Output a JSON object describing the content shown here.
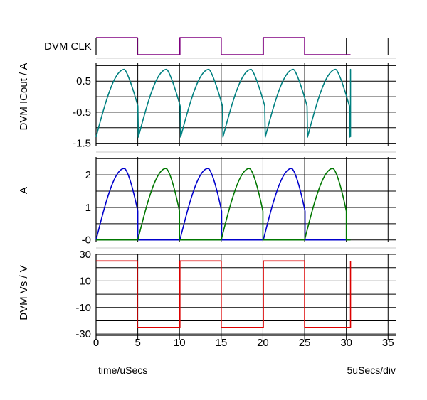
{
  "chart_data": [
    {
      "type": "line",
      "panel": "clock",
      "ylabel": "DVM CLK",
      "series": [
        {
          "color": "#800080",
          "x": [
            0,
            4.95,
            4.95,
            10.05,
            10.05,
            15.0,
            15.0,
            20.05,
            20.05,
            25.0,
            25.0,
            30.5
          ],
          "y": [
            1,
            1,
            0,
            0,
            1,
            1,
            0,
            0,
            1,
            1,
            0,
            0
          ]
        }
      ]
    },
    {
      "type": "line",
      "panel": "icout",
      "ylabel": "DVM ICout / A",
      "yticks": [
        0.5,
        -0.5,
        -1.5
      ],
      "ylim": [
        -1.6,
        1.1
      ],
      "series": [
        {
          "color": "#008080",
          "shape": "charge-discharge",
          "period": 5.07,
          "min": -1.3,
          "max": 0.88
        }
      ]
    },
    {
      "type": "line",
      "panel": "current",
      "ylabel": "A",
      "yticks": [
        2,
        1,
        0
      ],
      "yticklabels": [
        "2",
        "1",
        "-0"
      ],
      "ylim": [
        -0.05,
        2.55
      ],
      "series": [
        {
          "color": "#0000cc",
          "peak": 2.2,
          "pulse_starts": [
            0,
            10.05,
            20.05
          ]
        },
        {
          "color": "#007700",
          "peak": 2.2,
          "pulse_starts": [
            5.0,
            15.0,
            25.0
          ]
        }
      ]
    },
    {
      "type": "line",
      "panel": "vs",
      "ylabel": "DVM Vs / V",
      "yticks": [
        30,
        10,
        -10,
        -30
      ],
      "ylim": [
        -31,
        30
      ],
      "series": [
        {
          "color": "#dd0000",
          "x": [
            0,
            4.95,
            4.95,
            10.05,
            10.05,
            15.0,
            15.0,
            20.05,
            20.05,
            25.0,
            25.0,
            30.5,
            30.5
          ],
          "y": [
            25,
            25,
            -25,
            -25,
            25,
            25,
            -25,
            -25,
            25,
            25,
            -25,
            -25,
            25
          ]
        }
      ]
    }
  ],
  "x_axis": {
    "ticks": [
      0,
      5,
      10,
      15,
      20,
      25,
      30,
      35
    ],
    "xlim": [
      0,
      36
    ],
    "label": "time/uSecs",
    "scale_label": "5uSecs/div"
  }
}
